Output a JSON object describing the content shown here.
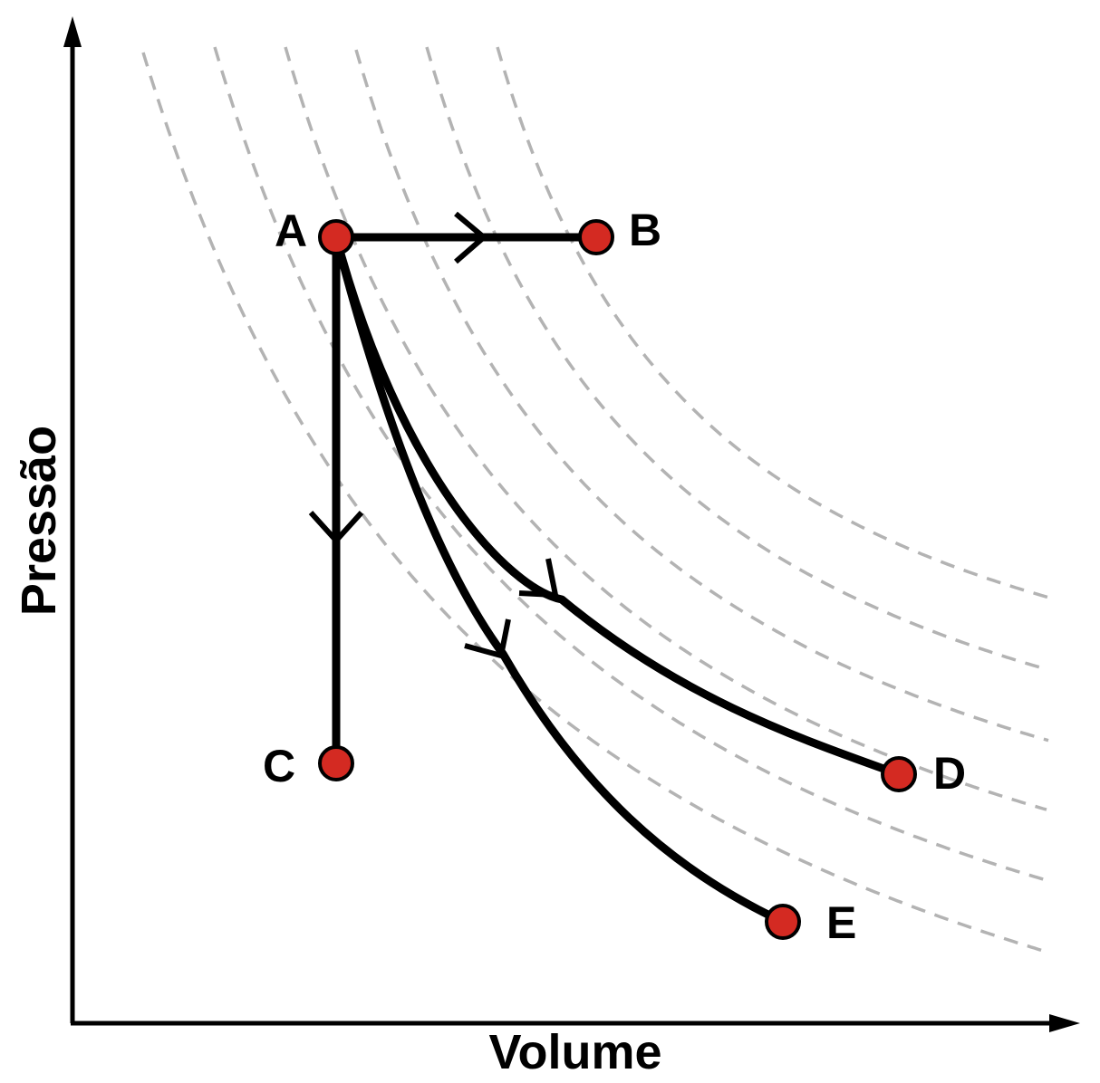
{
  "axes": {
    "x_label": "Volume",
    "y_label": "Pressão"
  },
  "colors": {
    "axis": "#000000",
    "isotherm": "#b3b3b3",
    "process": "#000000",
    "point_fill": "#d42a22",
    "point_stroke": "#000000"
  },
  "isotherms": {
    "count": 6,
    "style": "dashed"
  },
  "points": {
    "A": {
      "label": "A"
    },
    "B": {
      "label": "B"
    },
    "C": {
      "label": "C"
    },
    "D": {
      "label": "D"
    },
    "E": {
      "label": "E"
    }
  },
  "processes": [
    {
      "from": "A",
      "to": "B",
      "kind": "straight"
    },
    {
      "from": "A",
      "to": "C",
      "kind": "straight"
    },
    {
      "from": "A",
      "to": "D",
      "kind": "curve"
    },
    {
      "from": "A",
      "to": "E",
      "kind": "curve"
    }
  ]
}
